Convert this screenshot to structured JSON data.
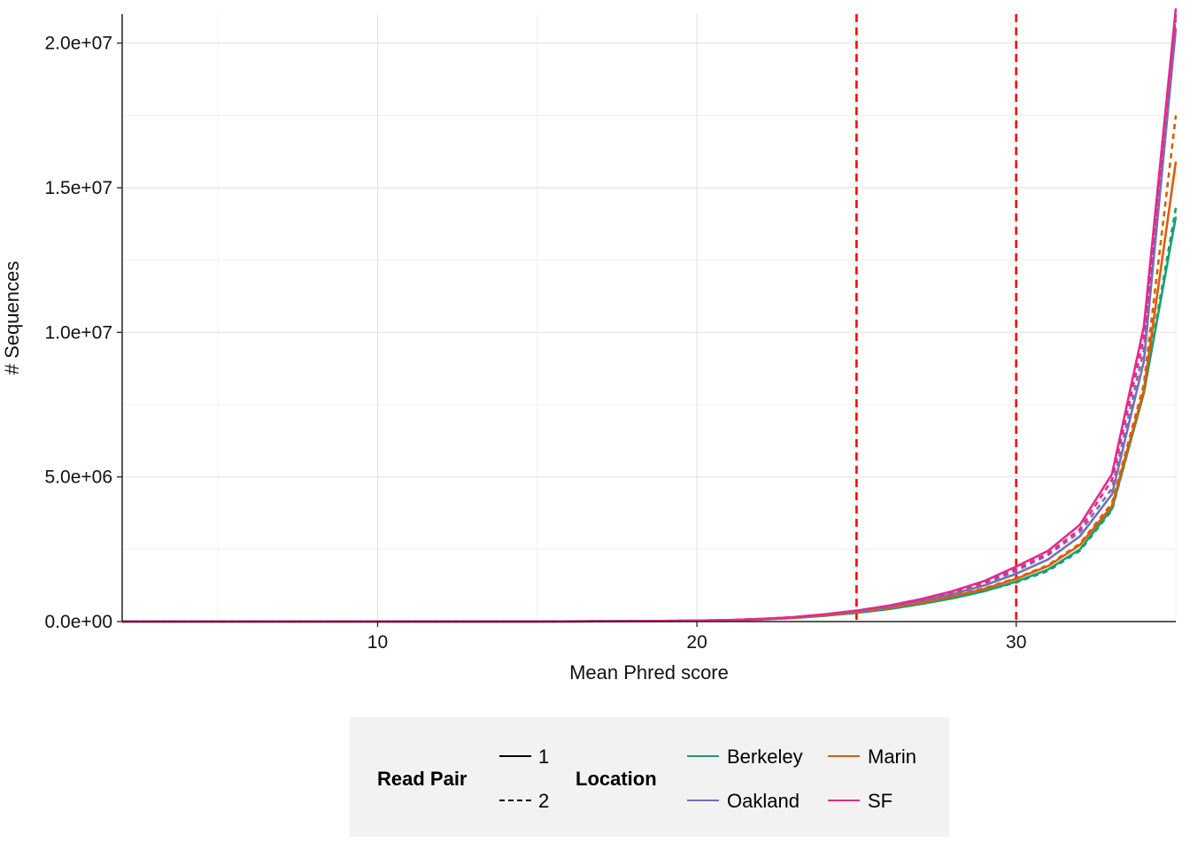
{
  "chart_data": {
    "type": "line",
    "title": "",
    "xlabel": "Mean Phred score",
    "ylabel": "# Sequences",
    "xlim": [
      2,
      35
    ],
    "ylim": [
      0,
      21000000
    ],
    "x_ticks": [
      10,
      20,
      30
    ],
    "x_tick_labels": [
      "10",
      "20",
      "30"
    ],
    "y_ticks": [
      0,
      5000000,
      10000000,
      15000000,
      20000000
    ],
    "y_tick_labels": [
      "0.0e+00",
      "5.0e+06",
      "1.0e+07",
      "1.5e+07",
      "2.0e+07"
    ],
    "grid": true,
    "reference_lines": [
      {
        "axis": "x",
        "value": 25,
        "color": "#ff0000",
        "style": "dashed"
      },
      {
        "axis": "x",
        "value": 30,
        "color": "#ff0000",
        "style": "dashed"
      }
    ],
    "x": [
      2,
      5,
      10,
      15,
      18,
      20,
      21,
      22,
      23,
      24,
      25,
      26,
      27,
      28,
      29,
      30,
      31,
      32,
      33,
      34,
      35
    ],
    "series": [
      {
        "location": "Berkeley",
        "read_pair": "1",
        "color": "#1b9e77",
        "values": [
          0,
          0,
          0,
          2000,
          10000,
          25000,
          40000,
          70000,
          120000,
          200000,
          300000,
          430000,
          600000,
          800000,
          1050000,
          1380000,
          1800000,
          2500000,
          3900000,
          7900000,
          14000000
        ]
      },
      {
        "location": "Berkeley",
        "read_pair": "2",
        "color": "#1b9e77",
        "values": [
          0,
          0,
          0,
          2000,
          10000,
          27000,
          42000,
          72000,
          125000,
          205000,
          310000,
          440000,
          610000,
          810000,
          1060000,
          1350000,
          1750000,
          2450000,
          3850000,
          7950000,
          14300000
        ]
      },
      {
        "location": "Marin",
        "read_pair": "1",
        "color": "#d95f02",
        "values": [
          0,
          0,
          0,
          2000,
          11000,
          28000,
          44000,
          78000,
          130000,
          215000,
          330000,
          470000,
          650000,
          870000,
          1130000,
          1480000,
          1920000,
          2650000,
          4000000,
          8000000,
          15900000
        ]
      },
      {
        "location": "Marin",
        "read_pair": "2",
        "color": "#d95f02",
        "values": [
          0,
          0,
          0,
          2000,
          11000,
          29000,
          46000,
          80000,
          134000,
          220000,
          340000,
          480000,
          660000,
          880000,
          1150000,
          1500000,
          1950000,
          2700000,
          4100000,
          8200000,
          17500000
        ]
      },
      {
        "location": "Oakland",
        "read_pair": "1",
        "color": "#7570b3",
        "values": [
          0,
          0,
          0,
          2000,
          12000,
          30000,
          48000,
          85000,
          140000,
          235000,
          360000,
          510000,
          710000,
          950000,
          1250000,
          1650000,
          2150000,
          2950000,
          4400000,
          9000000,
          20500000
        ]
      },
      {
        "location": "Oakland",
        "read_pair": "2",
        "color": "#7570b3",
        "values": [
          0,
          0,
          0,
          2000,
          13000,
          32000,
          50000,
          88000,
          145000,
          240000,
          370000,
          525000,
          730000,
          980000,
          1300000,
          1750000,
          2300000,
          3100000,
          4600000,
          9400000,
          20800000
        ]
      },
      {
        "location": "SF",
        "read_pair": "1",
        "color": "#e7298a",
        "values": [
          0,
          0,
          0,
          2000,
          13000,
          33000,
          52000,
          90000,
          150000,
          250000,
          380000,
          550000,
          770000,
          1050000,
          1400000,
          1900000,
          2450000,
          3350000,
          5100000,
          10200000,
          21200000
        ]
      },
      {
        "location": "SF",
        "read_pair": "2",
        "color": "#e7298a",
        "values": [
          0,
          0,
          0,
          2000,
          13000,
          33000,
          51000,
          89000,
          148000,
          245000,
          375000,
          540000,
          750000,
          1020000,
          1360000,
          1820000,
          2350000,
          3200000,
          4900000,
          9800000,
          21000000
        ]
      }
    ],
    "legend": {
      "position": "bottom",
      "read_pair": {
        "title": "Read Pair",
        "entries": [
          {
            "label": "1",
            "style": "solid"
          },
          {
            "label": "2",
            "style": "dashed"
          }
        ]
      },
      "location": {
        "title": "Location",
        "entries": [
          {
            "label": "Berkeley",
            "color": "#1b9e77"
          },
          {
            "label": "Marin",
            "color": "#d95f02"
          },
          {
            "label": "Oakland",
            "color": "#7570b3"
          },
          {
            "label": "SF",
            "color": "#e7298a"
          }
        ]
      }
    }
  }
}
